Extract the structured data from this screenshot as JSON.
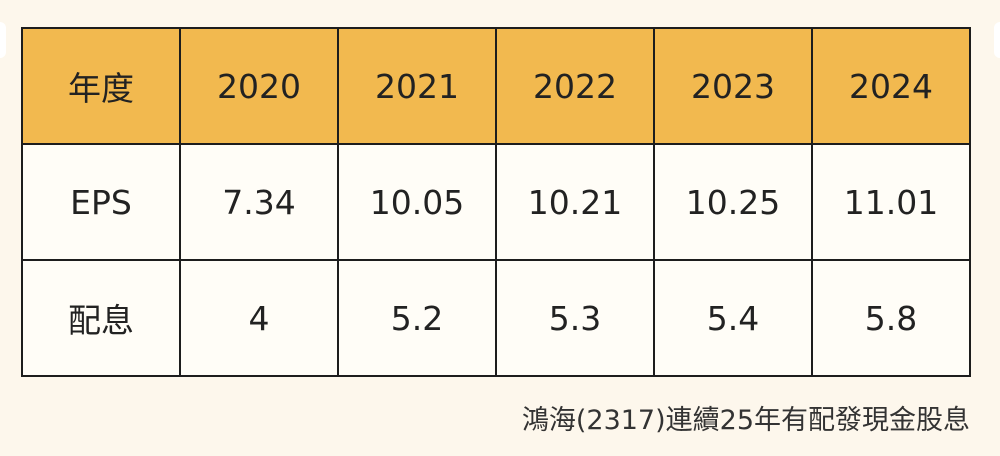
{
  "table": {
    "headers": [
      "年度",
      "2020",
      "2021",
      "2022",
      "2023",
      "2024"
    ],
    "rows": [
      [
        "EPS",
        "7.34",
        "10.05",
        "10.21",
        "10.25",
        "11.01"
      ],
      [
        "配息",
        "4",
        "5.2",
        "5.3",
        "5.4",
        "5.8"
      ]
    ]
  },
  "caption": "鴻海(2317)連續25年有配發現金股息",
  "colors": {
    "header_bg": "#f2b94f",
    "page_bg": "#fdf7ec",
    "border": "#1d1d1d"
  }
}
